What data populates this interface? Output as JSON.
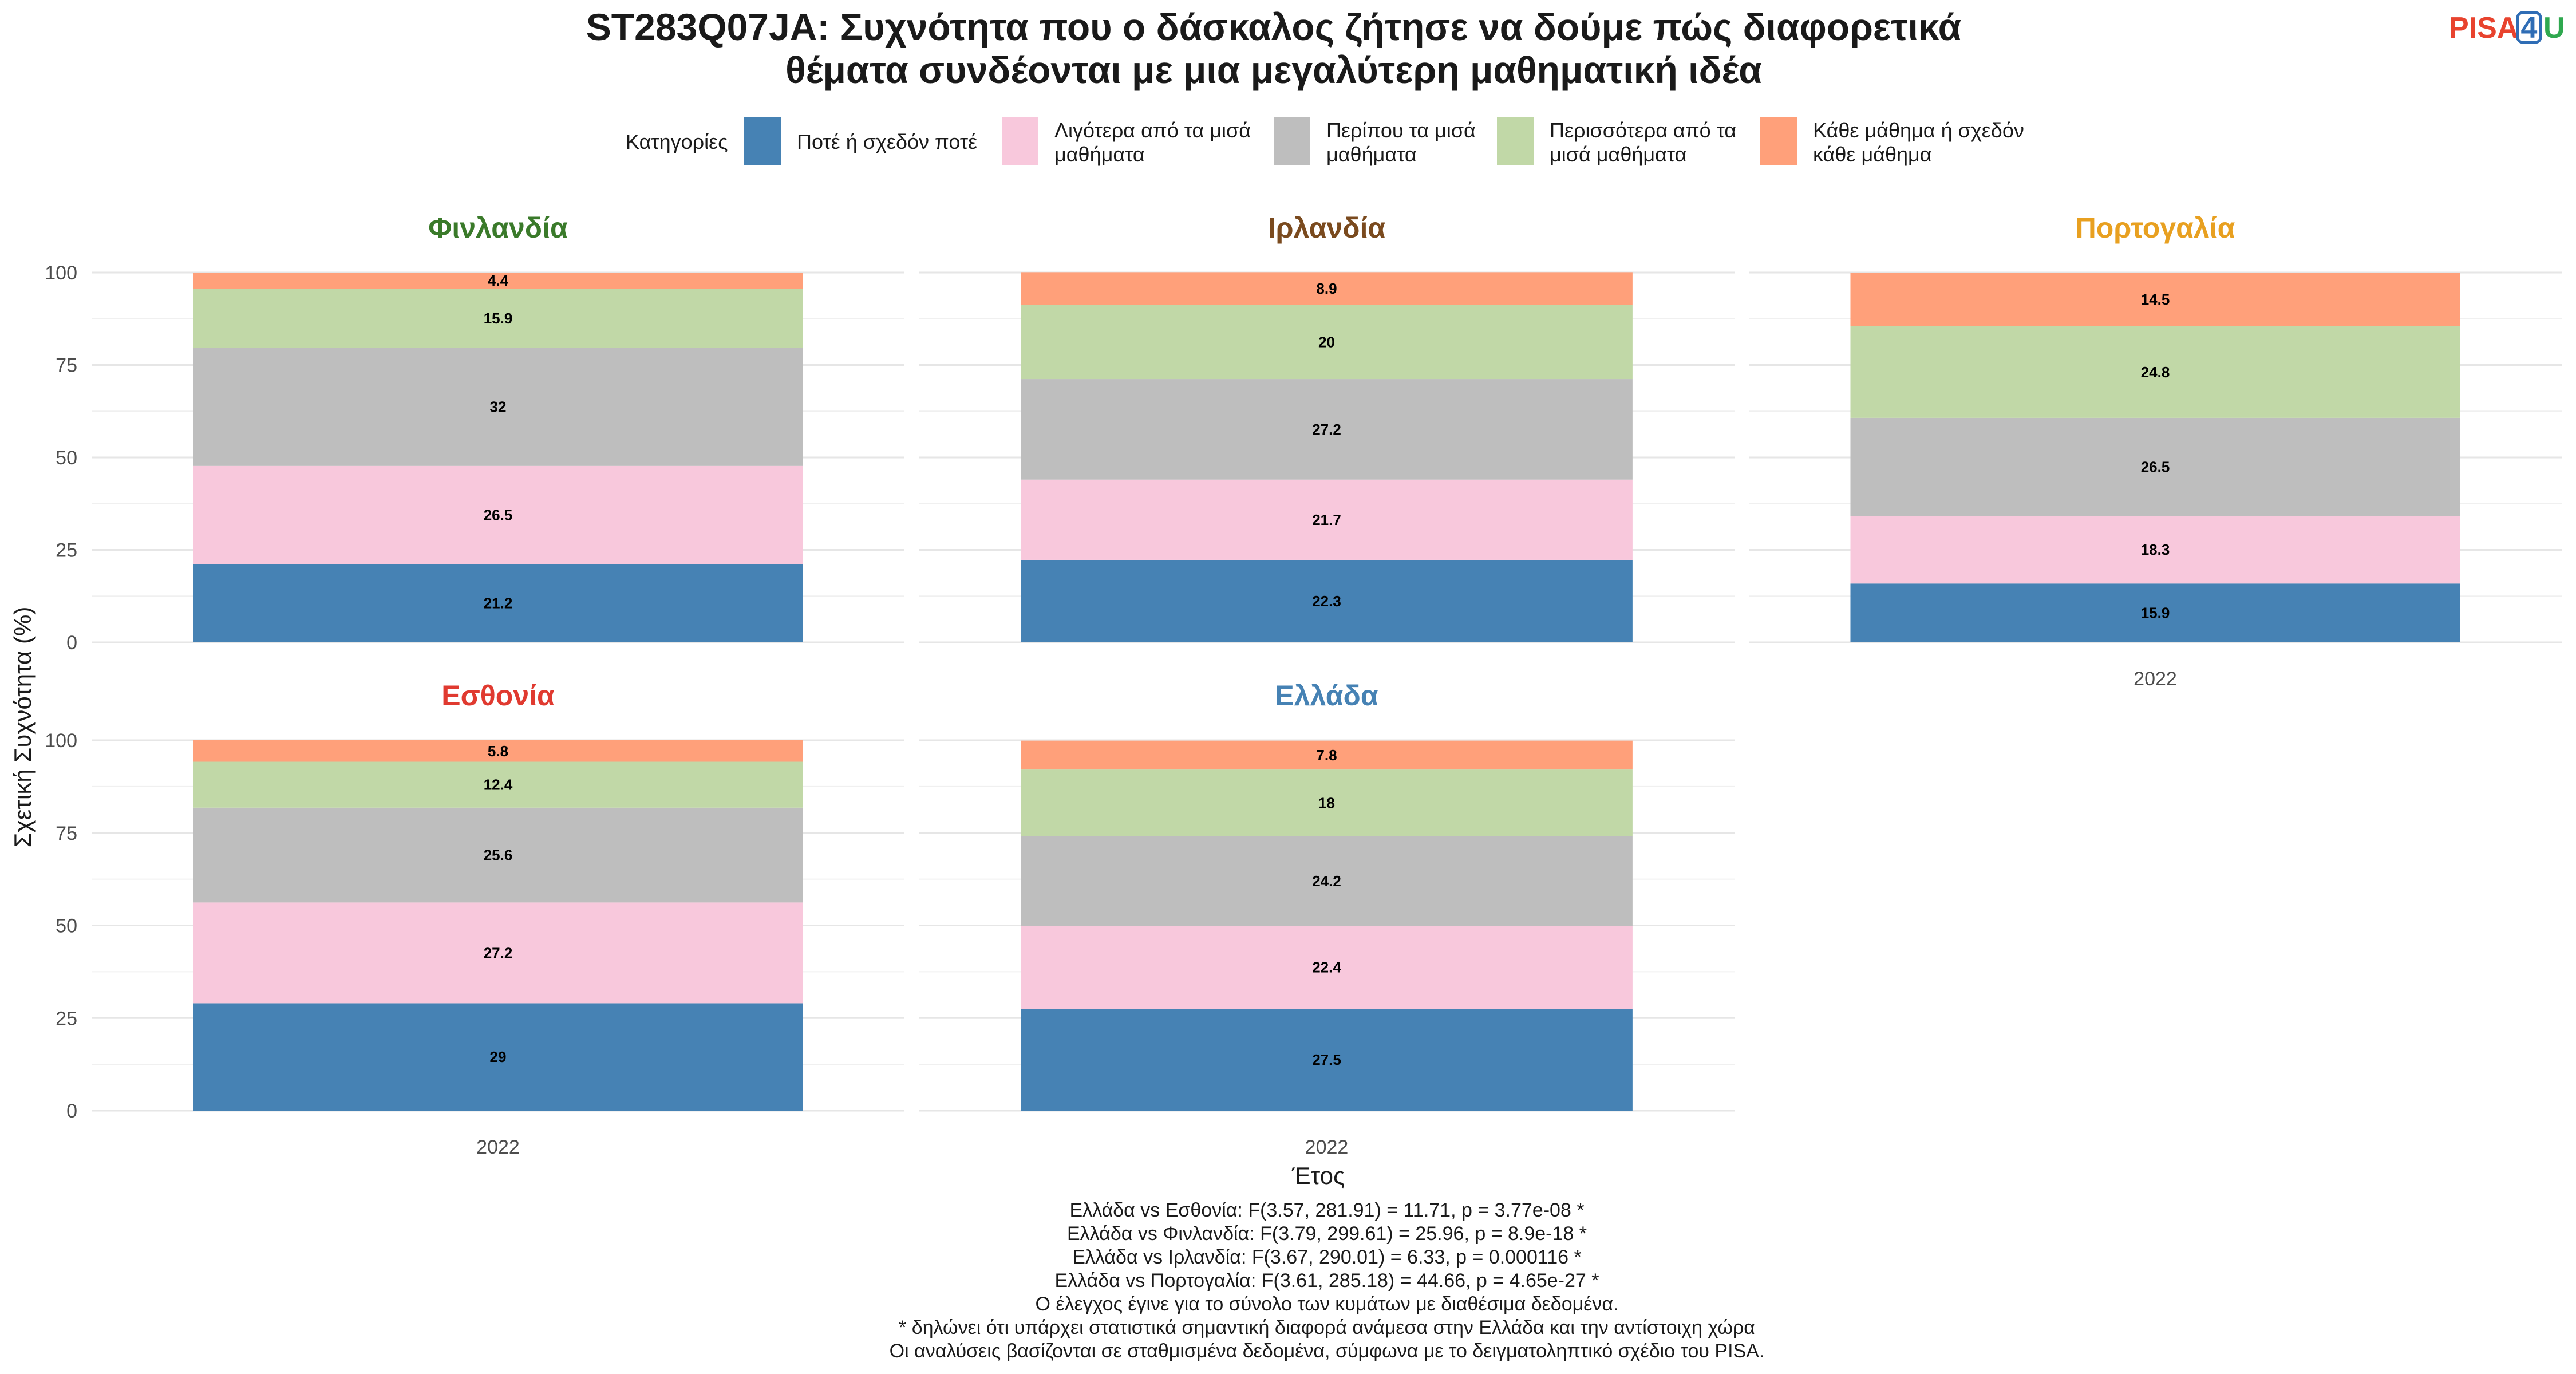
{
  "logo": {
    "part1": "PISA",
    "part2": "4",
    "part3": "U"
  },
  "chart_data": {
    "type": "bar",
    "stacked": true,
    "title_line1": "ST283Q07JA: Συχνότητα που ο δάσκαλος ζήτησε να δούμε πώς διαφορετικά",
    "title_line2": "θέματα συνδέονται με μια μεγαλύτερη μαθηματική ιδέα",
    "xlabel": "Έτος",
    "ylabel": "Σχετική Συχνότητα (%)",
    "ylim": [
      0,
      100
    ],
    "yticks": [
      "0",
      "25",
      "50",
      "75",
      "100"
    ],
    "legend_title": "Κατηγορίες",
    "legend_position": "top",
    "grid": true,
    "categories": [
      {
        "name_line1": "Ποτέ ή σχεδόν ποτέ",
        "name_line2": "",
        "color": "#4682B4"
      },
      {
        "name_line1": "Λιγότερα από τα μισά",
        "name_line2": "μαθήματα",
        "color": "#F8C8DC"
      },
      {
        "name_line1": "Περίπου τα μισά",
        "name_line2": "μαθήματα",
        "color": "#BEBEBE"
      },
      {
        "name_line1": "Περισσότερα από τα",
        "name_line2": "μισά μαθήματα",
        "color": "#C1D8A7"
      },
      {
        "name_line1": "Κάθε μάθημα ή σχεδόν",
        "name_line2": "κάθε μάθημα",
        "color": "#FFA07A"
      }
    ],
    "panels": [
      {
        "country": "Φινλανδία",
        "color": "#3A7A2A",
        "x": "2022",
        "values": [
          21.2,
          26.5,
          32,
          15.9,
          4.4
        ],
        "labels": [
          "21.2",
          "26.5",
          "32",
          "15.9",
          "4.4"
        ]
      },
      {
        "country": "Ιρλανδία",
        "color": "#7A4A1E",
        "x": "2022",
        "values": [
          22.3,
          21.7,
          27.2,
          20,
          8.9
        ],
        "labels": [
          "22.3",
          "21.7",
          "27.2",
          "20",
          "8.9"
        ]
      },
      {
        "country": "Πορτογαλία",
        "color": "#E8A020",
        "x": "2022",
        "values": [
          15.9,
          18.3,
          26.5,
          24.8,
          14.5
        ],
        "labels": [
          "15.9",
          "18.3",
          "26.5",
          "24.8",
          "14.5"
        ]
      },
      {
        "country": "Εσθονία",
        "color": "#E03A30",
        "x": "2022",
        "values": [
          29,
          27.2,
          25.6,
          12.4,
          5.8
        ],
        "labels": [
          "29",
          "27.2",
          "25.6",
          "12.4",
          "5.8"
        ]
      },
      {
        "country": "Ελλάδα",
        "color": "#4682B4",
        "x": "2022",
        "values": [
          27.5,
          22.4,
          24.2,
          18,
          7.8
        ],
        "labels": [
          "27.5",
          "22.4",
          "24.2",
          "18",
          "7.8"
        ]
      }
    ],
    "caption": [
      "Ελλάδα vs Εσθονία: F(3.57, 281.91) = 11.71, p = 3.77e-08 *",
      "Ελλάδα vs Φινλανδία: F(3.79, 299.61) = 25.96, p = 8.9e-18 *",
      "Ελλάδα vs Ιρλανδία: F(3.67, 290.01) = 6.33, p = 0.000116 *",
      "Ελλάδα vs Πορτογαλία: F(3.61, 285.18) = 44.66, p = 4.65e-27 *",
      "Ο έλεγχος έγινε για το σύνολο των κυμάτων με διαθέσιμα δεδομένα.",
      "* δηλώνει ότι υπάρχει στατιστικά σημαντική διαφορά ανάμεσα στην Ελλάδα και την αντίστοιχη χώρα",
      "Οι αναλύσεις βασίζονται σε σταθμισμένα δεδομένα, σύμφωνα με το δειγματοληπτικό σχέδιο του PISA."
    ]
  }
}
